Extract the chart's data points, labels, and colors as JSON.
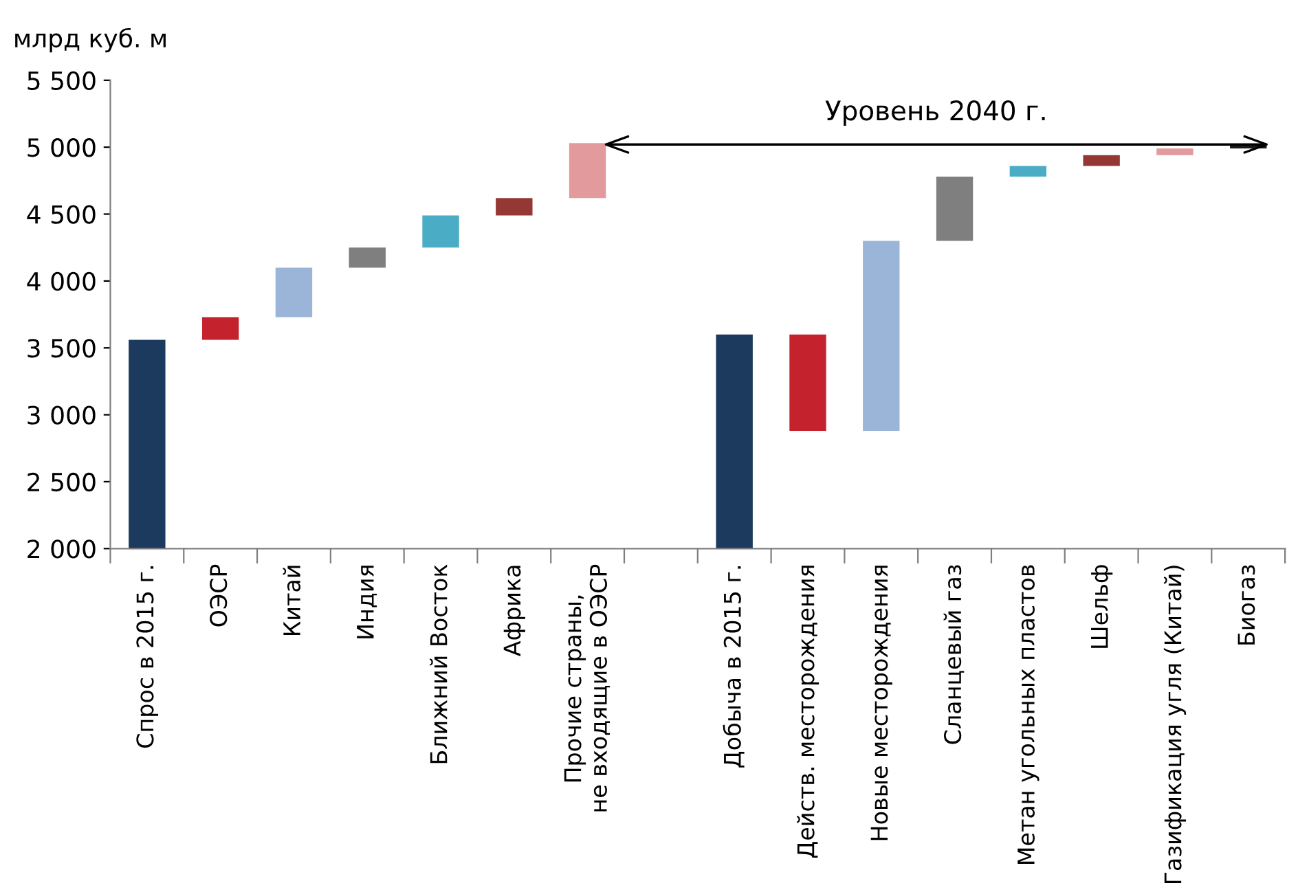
{
  "chart_data": {
    "type": "bar",
    "ylabel": "млрд куб. м",
    "categories": [
      "Спрос в 2015 г.",
      "ОЭСР",
      "Китай",
      "Индия",
      "Ближний Восток",
      "Африка",
      "Прочие страны, не входящие в ОЭСР",
      null,
      "Добыча в 2015 г.",
      "Действ. месторождения",
      "Новые месторождения",
      "Сланцевый газ",
      "Метан угольных пластов",
      "Шельф",
      "Газификация угля (Китай)",
      "Биогаз"
    ],
    "base": [
      2000,
      3560,
      3730,
      4100,
      4250,
      4490,
      4620,
      null,
      2000,
      3600,
      2880,
      4300,
      4780,
      4860,
      4940,
      4990
    ],
    "values": [
      1560,
      170,
      370,
      150,
      240,
      130,
      410,
      null,
      1600,
      -720,
      1420,
      480,
      80,
      80,
      50,
      30
    ],
    "colors": [
      "#1b3a5e",
      "#c4232d",
      "#9bb5d9",
      "#7f7f7f",
      "#4bacc6",
      "#953735",
      "#e39a9c",
      "#ffffff",
      "#1b3a5e",
      "#c4232d",
      "#9bb5d9",
      "#7f7f7f",
      "#4bacc6",
      "#953735",
      "#e39a9c",
      "#1a1a1a"
    ],
    "ylim": [
      2000,
      5500
    ],
    "yticks": [
      {
        "value": 2000,
        "label": "2 000"
      },
      {
        "value": 2500,
        "label": "2 500"
      },
      {
        "value": 3000,
        "label": "3 000"
      },
      {
        "value": 3500,
        "label": "3 500"
      },
      {
        "value": 4000,
        "label": "4 000"
      },
      {
        "value": 4500,
        "label": "4 500"
      },
      {
        "value": 5000,
        "label": "5 000"
      },
      {
        "value": 5500,
        "label": "5 500"
      }
    ],
    "ref_lines": [
      {
        "axis": "y",
        "value": 5020,
        "label": "Уровень 2040 г.",
        "color": "#000000"
      }
    ],
    "grid": false
  }
}
